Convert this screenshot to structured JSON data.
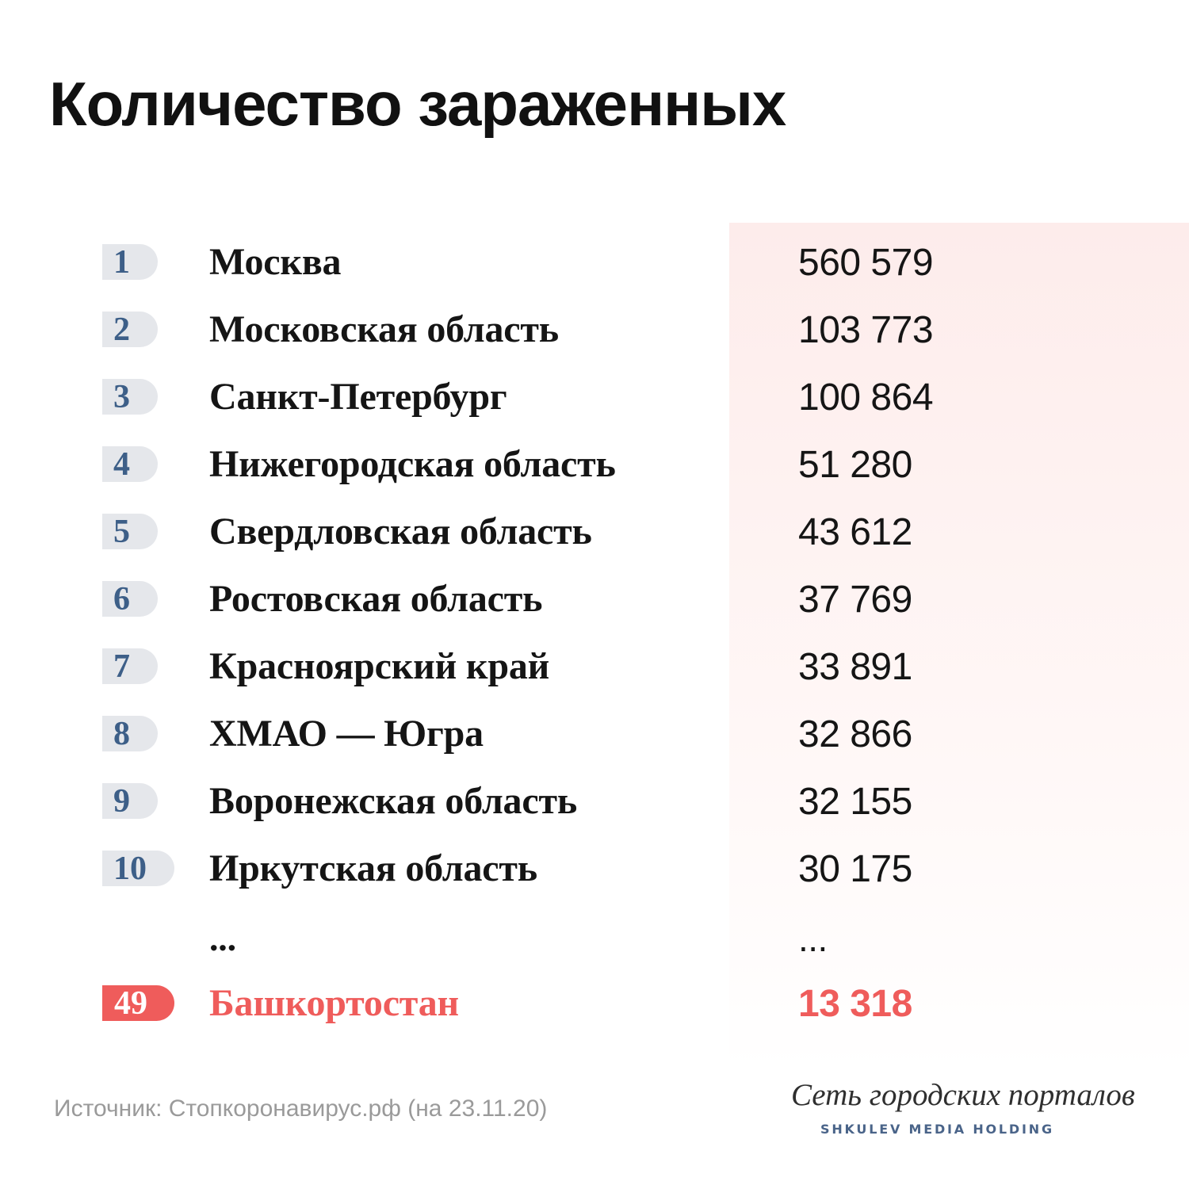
{
  "title": "Количество зараженных",
  "chart_data": {
    "type": "table",
    "title": "Количество зараженных",
    "columns": [
      "",
      "",
      ""
    ],
    "rows": [
      {
        "rank": "1",
        "region": "Москва",
        "value": 560579,
        "display_value": "560 579"
      },
      {
        "rank": "2",
        "region": "Московская область",
        "value": 103773,
        "display_value": "103 773"
      },
      {
        "rank": "3",
        "region": "Санкт-Петербург",
        "value": 100864,
        "display_value": "100 864"
      },
      {
        "rank": "4",
        "region": "Нижегородская область",
        "value": 51280,
        "display_value": "51 280"
      },
      {
        "rank": "5",
        "region": "Свердловская область",
        "value": 43612,
        "display_value": "43 612"
      },
      {
        "rank": "6",
        "region": "Ростовская область",
        "value": 37769,
        "display_value": "37 769"
      },
      {
        "rank": "7",
        "region": "Красноярский край",
        "value": 33891,
        "display_value": "33 891"
      },
      {
        "rank": "8",
        "region": "ХМАО — Югра",
        "value": 32866,
        "display_value": "32 866"
      },
      {
        "rank": "9",
        "region": "Воронежская область",
        "value": 32155,
        "display_value": "32 155"
      },
      {
        "rank": "10",
        "region": "Иркутская область",
        "value": 30175,
        "display_value": "30 175"
      },
      {
        "rank": "",
        "region": "...",
        "value": null,
        "display_value": "..."
      },
      {
        "rank": "49",
        "region": "Башкортостан",
        "value": 13318,
        "display_value": "13 318"
      }
    ],
    "highlight_rank": "49",
    "colors": {
      "rank_pill": "#e5e7eb",
      "rank_text": "#3d5f88",
      "highlight": "#ef5c5b",
      "value_panel": "#fdeceb"
    }
  },
  "footer": {
    "source": "Источник: Стопкоронавирус.рф (на 23.11.20)",
    "logo_main": "Сеть городских порталов",
    "logo_sub": "SHKULEV MEDIA HOLDING"
  }
}
